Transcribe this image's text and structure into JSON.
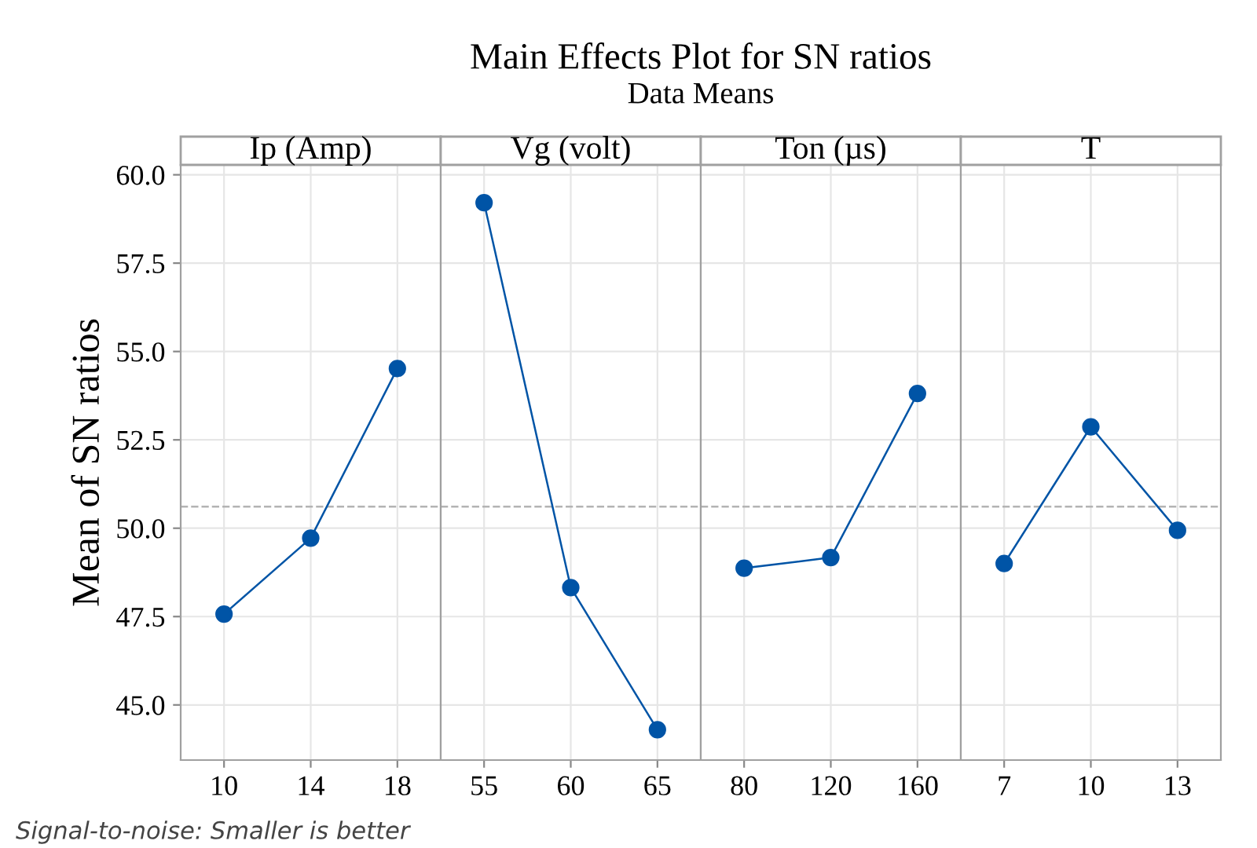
{
  "chart_data": [
    {
      "type": "other",
      "title": "Main Effects Plot for SN ratios",
      "subtitle": "Data Means"
    },
    {
      "type": "line",
      "xlabel": "Ip (Amp)",
      "ylabel": "Mean of SN ratios",
      "categories": [
        "10",
        "14",
        "18"
      ],
      "series": [
        {
          "color": "#0054a6",
          "values": [
            47.57,
            49.72,
            54.52
          ]
        }
      ],
      "ylim": [
        43.44,
        60.28
      ],
      "yticks": [
        {
          "value": 45,
          "label": "45.0"
        },
        {
          "value": 47.5,
          "label": "47.5"
        },
        {
          "value": 50,
          "label": "50.0"
        },
        {
          "value": 52.5,
          "label": "52.5"
        },
        {
          "value": 55,
          "label": "55.0"
        },
        {
          "value": 57.5,
          "label": "57.5"
        },
        {
          "value": 60,
          "label": "60.0"
        }
      ],
      "ref_lines": [
        {
          "axis": "y",
          "value": 50.61,
          "color": "#b4b4b4",
          "line_style": "dashed"
        }
      ],
      "grid": true,
      "marker": "circle",
      "line_style": "solid",
      "legend": false,
      "annotations": [
        "Signal-to-noise: Smaller is better"
      ]
    },
    {
      "type": "line",
      "xlabel": "Vg (volt)",
      "categories": [
        "55",
        "60",
        "65"
      ],
      "series": [
        {
          "color": "#0054a6",
          "values": [
            59.21,
            48.32,
            44.3
          ]
        }
      ],
      "ylim": [
        43.44,
        60.28
      ],
      "tick_labels": "x",
      "ref_lines": [
        {
          "axis": "y",
          "value": 50.61,
          "color": "#b4b4b4",
          "line_style": "dashed"
        }
      ],
      "grid": true,
      "marker": "circle",
      "line_style": "solid",
      "legend": false
    },
    {
      "type": "line",
      "xlabel": "Ton (µs)",
      "categories": [
        "80",
        "120",
        "160"
      ],
      "series": [
        {
          "color": "#0054a6",
          "values": [
            48.87,
            49.17,
            53.81
          ]
        }
      ],
      "ylim": [
        43.44,
        60.28
      ],
      "tick_labels": "x",
      "ref_lines": [
        {
          "axis": "y",
          "value": 50.61,
          "color": "#b4b4b4",
          "line_style": "dashed"
        }
      ],
      "grid": true,
      "marker": "circle",
      "line_style": "solid",
      "legend": false
    },
    {
      "type": "line",
      "xlabel": "T",
      "categories": [
        "7",
        "10",
        "13"
      ],
      "series": [
        {
          "color": "#0054a6",
          "values": [
            49.0,
            52.87,
            49.94
          ]
        }
      ],
      "ylim": [
        43.44,
        60.28
      ],
      "tick_labels": "x",
      "ref_lines": [
        {
          "axis": "y",
          "value": 50.61,
          "color": "#b4b4b4",
          "line_style": "dashed"
        }
      ],
      "grid": true,
      "marker": "circle",
      "line_style": "solid",
      "legend": false
    }
  ]
}
